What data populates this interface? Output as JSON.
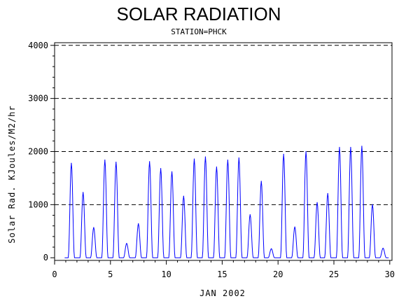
{
  "chart_data": {
    "type": "line",
    "title": "SOLAR RADIATION",
    "subtitle": "STATION=PHCK",
    "xlabel": "JAN 2002",
    "ylabel": "Solar Rad. KJoules/M2/hr",
    "xlim": [
      0,
      30.2
    ],
    "ylim": [
      -50,
      4050
    ],
    "x_ticks": [
      0,
      5,
      10,
      15,
      20,
      25,
      30
    ],
    "y_ticks": [
      0,
      1000,
      2000,
      3000,
      4000
    ],
    "grid": "horizontal-dashed",
    "series": [
      {
        "color": "#0000ff",
        "daily_peaks": [
          {
            "day": 1,
            "peak": 1780,
            "x": 1.5
          },
          {
            "day": 2,
            "peak": 1230,
            "x": 2.55
          },
          {
            "day": 3,
            "peak": 570,
            "x": 3.5
          },
          {
            "day": 4,
            "peak": 1840,
            "x": 4.5
          },
          {
            "day": 5,
            "peak": 1800,
            "x": 5.5
          },
          {
            "day": 6,
            "peak": 270,
            "x": 6.45
          },
          {
            "day": 7,
            "peak": 640,
            "x": 7.5
          },
          {
            "day": 8,
            "peak": 1810,
            "x": 8.5
          },
          {
            "day": 9,
            "peak": 1680,
            "x": 9.5
          },
          {
            "day": 10,
            "peak": 1620,
            "x": 10.5
          },
          {
            "day": 11,
            "peak": 1160,
            "x": 11.55
          },
          {
            "day": 12,
            "peak": 1860,
            "x": 12.5
          },
          {
            "day": 13,
            "peak": 1900,
            "x": 13.5
          },
          {
            "day": 14,
            "peak": 1710,
            "x": 14.5
          },
          {
            "day": 15,
            "peak": 1840,
            "x": 15.5
          },
          {
            "day": 16,
            "peak": 1880,
            "x": 16.5
          },
          {
            "day": 17,
            "peak": 810,
            "x": 17.5
          },
          {
            "day": 18,
            "peak": 1440,
            "x": 18.5
          },
          {
            "day": 19,
            "peak": 170,
            "x": 19.4
          },
          {
            "day": 20,
            "peak": 1950,
            "x": 20.5
          },
          {
            "day": 21,
            "peak": 580,
            "x": 21.5
          },
          {
            "day": 22,
            "peak": 2000,
            "x": 22.5
          },
          {
            "day": 23,
            "peak": 1040,
            "x": 23.5
          },
          {
            "day": 24,
            "peak": 1210,
            "x": 24.45
          },
          {
            "day": 25,
            "peak": 2080,
            "x": 25.5
          },
          {
            "day": 26,
            "peak": 2080,
            "x": 26.5
          },
          {
            "day": 27,
            "peak": 2100,
            "x": 27.5
          },
          {
            "day": 28,
            "peak": 1000,
            "x": 28.45
          },
          {
            "day": 29,
            "peak": 180,
            "x": 29.4
          }
        ]
      }
    ]
  }
}
